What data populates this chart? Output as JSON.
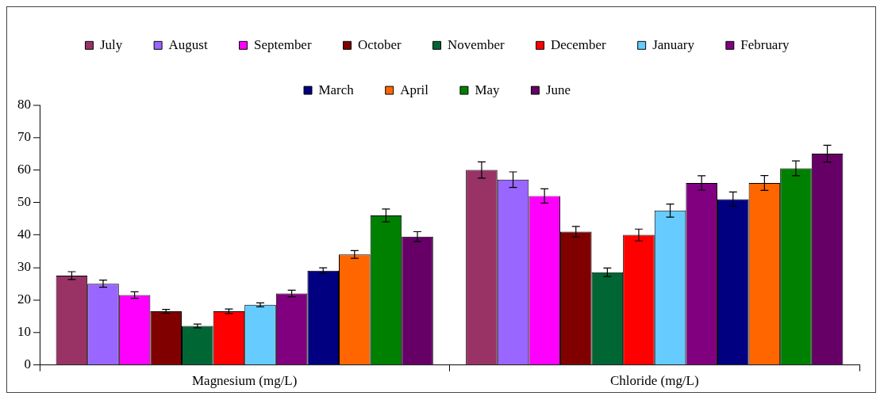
{
  "chart_data": {
    "type": "bar",
    "categories": [
      "Magnesium (mg/L)",
      "Chloride (mg/L)"
    ],
    "ylim": [
      0,
      80
    ],
    "yticks": [
      0,
      10,
      20,
      30,
      40,
      50,
      60,
      70,
      80
    ],
    "grid": false,
    "legend": "top",
    "series": [
      {
        "name": "July",
        "color": "#993366",
        "values": [
          27.5,
          60
        ],
        "errors": [
          1.2,
          2.5
        ]
      },
      {
        "name": "August",
        "color": "#9966ff",
        "values": [
          25,
          57
        ],
        "errors": [
          1.1,
          2.4
        ]
      },
      {
        "name": "September",
        "color": "#ff00ff",
        "values": [
          21.5,
          52
        ],
        "errors": [
          1,
          2.2
        ]
      },
      {
        "name": "October",
        "color": "#800000",
        "values": [
          16.5,
          41
        ],
        "errors": [
          0.6,
          1.6
        ]
      },
      {
        "name": "November",
        "color": "#006633",
        "values": [
          12,
          28.5
        ],
        "errors": [
          0.6,
          1.3
        ]
      },
      {
        "name": "December",
        "color": "#ff0000",
        "values": [
          16.5,
          40
        ],
        "errors": [
          0.7,
          1.8
        ]
      },
      {
        "name": "January",
        "color": "#66ccff",
        "values": [
          18.5,
          47.5
        ],
        "errors": [
          0.6,
          2
        ]
      },
      {
        "name": "February",
        "color": "#800080",
        "values": [
          22,
          56
        ],
        "errors": [
          1,
          2.2
        ]
      },
      {
        "name": "March",
        "color": "#000080",
        "values": [
          29,
          51
        ],
        "errors": [
          0.9,
          2.2
        ]
      },
      {
        "name": "April",
        "color": "#ff6600",
        "values": [
          34,
          56
        ],
        "errors": [
          1.2,
          2.3
        ]
      },
      {
        "name": "May",
        "color": "#008000",
        "values": [
          46,
          60.5
        ],
        "errors": [
          2,
          2.3
        ]
      },
      {
        "name": "June",
        "color": "#660066",
        "values": [
          39.5,
          65
        ],
        "errors": [
          1.5,
          2.6
        ]
      }
    ]
  }
}
